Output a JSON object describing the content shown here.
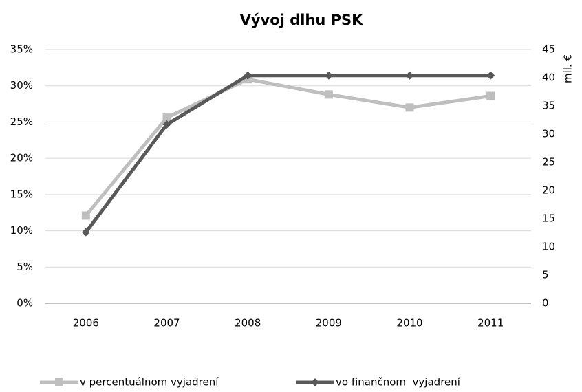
{
  "chart_data": {
    "type": "line",
    "title": "Vývoj dlhu PSK",
    "categories": [
      "2006",
      "2007",
      "2008",
      "2009",
      "2010",
      "2011"
    ],
    "series": [
      {
        "name": "v percentuálnom vyjadrení",
        "color": "#bfbfbf",
        "marker": "square",
        "values": [
          12.1,
          25.6,
          30.9,
          28.8,
          27.0,
          28.6
        ]
      },
      {
        "name": "vo finančnom  vyjadrení",
        "color": "#595959",
        "marker": "diamond",
        "axis": "y2",
        "values": [
          12.6,
          31.7,
          40.4,
          40.4,
          40.4,
          40.4
        ]
      }
    ],
    "ylim": [
      0,
      35
    ],
    "yticks": [
      {
        "value": 0,
        "label": "0%"
      },
      {
        "value": 5,
        "label": "5%"
      },
      {
        "value": 10,
        "label": "10%"
      },
      {
        "value": 15,
        "label": "15%"
      },
      {
        "value": 20,
        "label": "20%"
      },
      {
        "value": 25,
        "label": "25%"
      },
      {
        "value": 30,
        "label": "30%"
      },
      {
        "value": 35,
        "label": "35%"
      }
    ],
    "y2lim": [
      0,
      45
    ],
    "y2ticks": [
      0,
      5,
      10,
      15,
      20,
      25,
      30,
      35,
      40,
      45
    ],
    "y2label": "mil. €",
    "grid": true,
    "legend": "bottom"
  }
}
